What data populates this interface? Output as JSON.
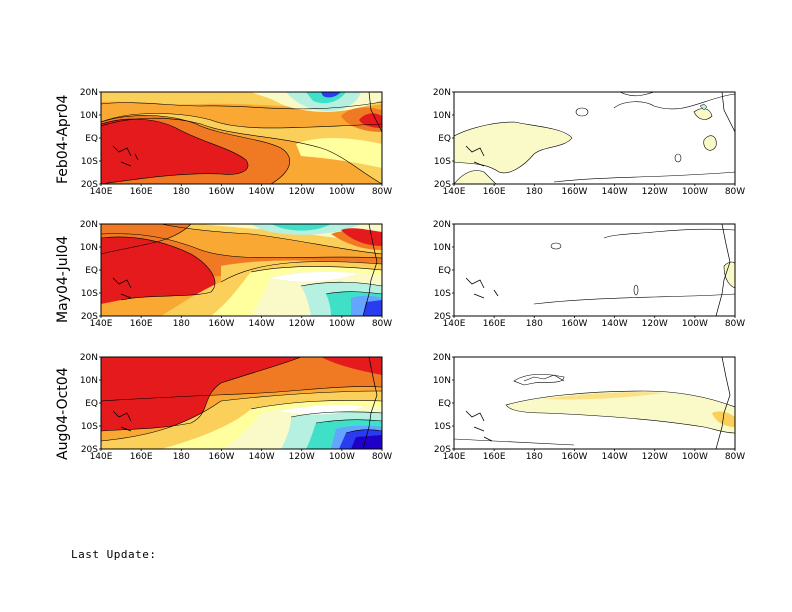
{
  "rows": [
    {
      "label": "Feb04-Apr04"
    },
    {
      "label": "May04-Jul04"
    },
    {
      "label": "Aug04-Oct04"
    }
  ],
  "axes": {
    "lon_labels": [
      "140E",
      "160E",
      "180",
      "160W",
      "140W",
      "120W",
      "100W",
      "80W"
    ],
    "lat_labels": [
      "20N",
      "10N",
      "EQ",
      "10S",
      "20S"
    ]
  },
  "palette": {
    "red": "#e41a1c",
    "orange_dark": "#f07a24",
    "orange": "#f9a834",
    "yellow_orange": "#fbd05a",
    "yellow": "#ffff9e",
    "light_yellow": "#fafac8",
    "cyan_light": "#b6f0e0",
    "cyan": "#40e0c8",
    "blue_light": "#63a5ff",
    "blue": "#2a3cf0",
    "blue_dark": "#1e00c8"
  },
  "footer": {
    "last_update": "Last Update:"
  }
}
